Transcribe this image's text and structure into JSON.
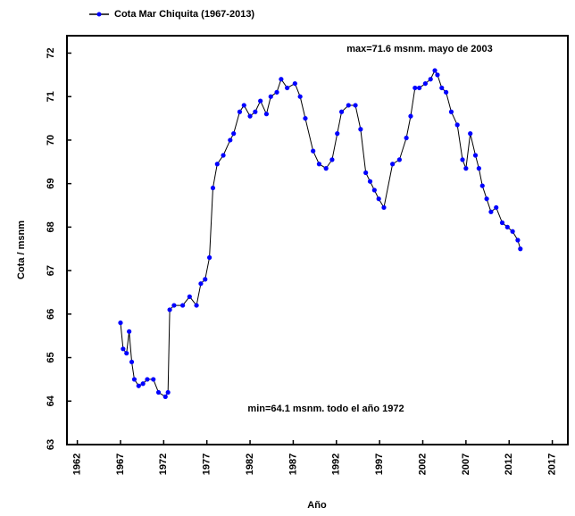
{
  "chart_data": {
    "type": "line",
    "xlabel": "Año",
    "ylabel": "Cota / msnm",
    "annotations": [
      "max=71.6 msnm. mayo de 2003",
      "min=64.1 msnm. todo el año 1972"
    ],
    "legend": "top-left",
    "xlim": [
      1960.8,
      2018.8
    ],
    "xticks": [
      1962,
      1967,
      1972,
      1977,
      1982,
      1987,
      1992,
      1997,
      2002,
      2007,
      2012,
      2017
    ],
    "ylim": [
      63,
      72.4
    ],
    "yticks": [
      63,
      64,
      65,
      66,
      67,
      68,
      69,
      70,
      71,
      72
    ],
    "series": [
      {
        "name": "Cota Mar Chiquita (1967-2013)",
        "color": "#0000ff",
        "line_color": "#000000",
        "x": [
          1967.0,
          1967.3,
          1967.7,
          1968.0,
          1968.3,
          1968.6,
          1969.1,
          1969.6,
          1970.1,
          1970.8,
          1971.4,
          1972.2,
          1972.5,
          1972.7,
          1973.2,
          1974.2,
          1975.0,
          1975.8,
          1976.3,
          1976.8,
          1977.3,
          1977.7,
          1978.2,
          1978.9,
          1979.7,
          1980.1,
          1980.8,
          1981.3,
          1982.0,
          1982.6,
          1983.2,
          1983.9,
          1984.4,
          1985.1,
          1985.6,
          1986.3,
          1987.2,
          1987.8,
          1988.4,
          1989.3,
          1990.0,
          1990.8,
          1991.5,
          1992.1,
          1992.6,
          1993.4,
          1994.2,
          1994.8,
          1995.4,
          1995.9,
          1996.4,
          1996.9,
          1997.5,
          1998.5,
          1999.3,
          2000.1,
          2000.6,
          2001.1,
          2001.6,
          2002.3,
          2002.9,
          2003.4,
          2003.7,
          2004.2,
          2004.7,
          2005.3,
          2006.0,
          2006.6,
          2007.0,
          2007.5,
          2008.1,
          2008.5,
          2008.9,
          2009.4,
          2009.9,
          2010.5,
          2011.2,
          2011.8,
          2012.4,
          2013.0,
          2013.3
        ],
        "values": [
          65.8,
          65.2,
          65.1,
          65.6,
          64.9,
          64.5,
          64.35,
          64.4,
          64.5,
          64.5,
          64.2,
          64.1,
          64.2,
          66.1,
          66.2,
          66.2,
          66.4,
          66.2,
          66.7,
          66.8,
          67.3,
          68.9,
          69.45,
          69.65,
          70.0,
          70.15,
          70.65,
          70.8,
          70.55,
          70.65,
          70.9,
          70.6,
          71.0,
          71.1,
          71.4,
          71.2,
          71.3,
          71.0,
          70.5,
          69.75,
          69.45,
          69.35,
          69.55,
          70.15,
          70.65,
          70.8,
          70.8,
          70.25,
          69.25,
          69.05,
          68.85,
          68.65,
          68.45,
          69.45,
          69.55,
          70.05,
          70.55,
          71.2,
          71.2,
          71.3,
          71.4,
          71.6,
          71.5,
          71.2,
          71.1,
          70.65,
          70.35,
          69.55,
          69.35,
          70.15,
          69.65,
          69.35,
          68.95,
          68.65,
          68.35,
          68.45,
          68.1,
          68.0,
          67.9,
          67.7,
          67.5
        ]
      }
    ]
  }
}
